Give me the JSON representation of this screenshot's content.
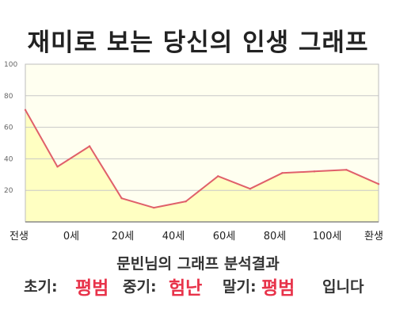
{
  "title": "재미로 보는 당신의 인생 그래프",
  "summary": {
    "heading": "문빈님의 그래프 분석결과",
    "early_label": "초기:",
    "early_value": "평범",
    "middle_label": "중기:",
    "middle_value": "험난",
    "late_label": "말기:",
    "late_value": "평범",
    "ending": "입니다"
  },
  "colors": {
    "line": "#e0606a",
    "fill": "#ffffc2",
    "plot_bg": "#fffff0",
    "grid": "#c8c8c8",
    "accent": "#e8334a"
  },
  "chart_data": {
    "type": "area",
    "title": "재미로 보는 당신의 인생 그래프",
    "xlabel": "",
    "ylabel": "",
    "ylim": [
      0,
      100
    ],
    "yticks": [
      20,
      40,
      60,
      80,
      100
    ],
    "y_tick_labels": [
      "20",
      "40",
      "60",
      "80",
      "100"
    ],
    "x_tick_labels": [
      "전생",
      "0세",
      "20세",
      "40세",
      "60세",
      "80세",
      "100세",
      "환생"
    ],
    "grid": true,
    "legend": "none",
    "series": [
      {
        "values": [
          71,
          35,
          48,
          15,
          9,
          13,
          29,
          21,
          31,
          32,
          33,
          24
        ]
      }
    ]
  }
}
